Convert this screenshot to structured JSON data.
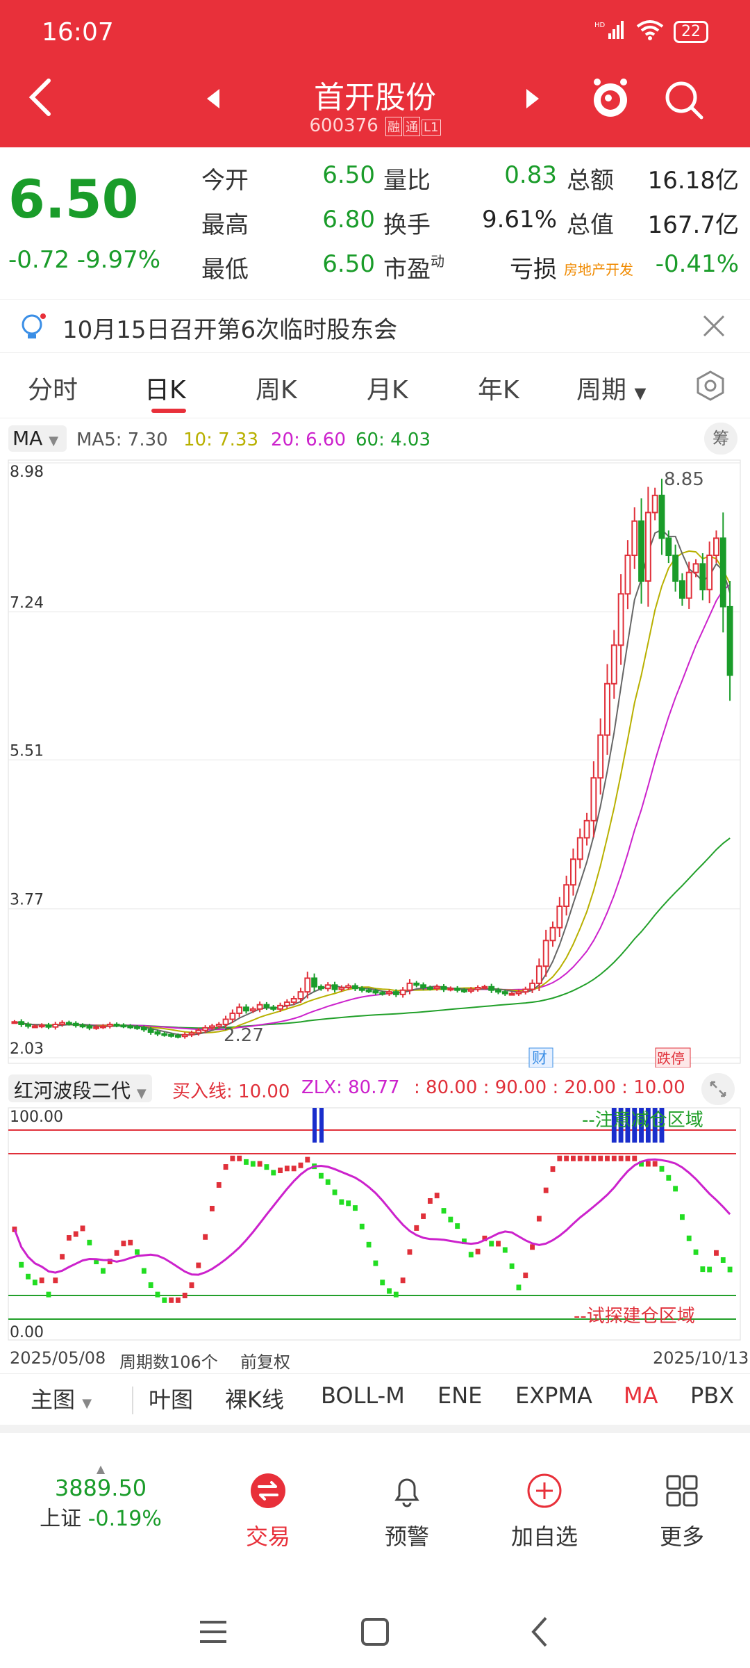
{
  "status": {
    "time": "16:07",
    "signal": "HD",
    "battery": "22"
  },
  "header": {
    "stock_name": "首开股份",
    "stock_code": "600376",
    "tags": [
      "融",
      "通",
      "L1"
    ]
  },
  "quote": {
    "price": "6.50",
    "change": "-0.72  -9.97%",
    "fields": {
      "open_label": "今开",
      "open": "6.50",
      "high_label": "最高",
      "high": "6.80",
      "low_label": "最低",
      "low": "6.50",
      "volratio_label": "量比",
      "volratio": "0.83",
      "turnover_label": "换手",
      "turnover": "9.61%",
      "pe_label": "市盈",
      "pe_sup": "动",
      "pe": "亏损",
      "amount_label": "总额",
      "amount": "16.18亿",
      "mktcap_label": "总值",
      "mktcap": "167.7亿",
      "sector": "房地产开发",
      "sector_change": "-0.41%"
    }
  },
  "notice": {
    "text": "10月15日召开第6次临时股东会"
  },
  "tabs": [
    "分时",
    "日K",
    "周K",
    "月K",
    "年K",
    "周期"
  ],
  "ma_bar": {
    "select": "MA",
    "ma5": "MA5: 7.30",
    "ma10": "10: 7.33",
    "ma20": "20: 6.60",
    "ma60": "60: 4.03",
    "calc": "筹",
    "colors": {
      "ma5": "#666666",
      "ma10": "#b8b000",
      "ma20": "#cc22cc",
      "ma60": "#22a02a"
    }
  },
  "main_chart": {
    "y_labels": [
      "8.98",
      "7.24",
      "5.51",
      "3.77",
      "2.03"
    ],
    "high_mark": "8.85",
    "low_mark": "2.27",
    "tag_cai": "财",
    "tag_wu": "跌停",
    "colors": {
      "up": "#e0303a",
      "down": "#1a9c2a"
    }
  },
  "indicator": {
    "name": "红河波段二代",
    "buy_line": "买入线: 10.00",
    "zlx": "ZLX: 80.77",
    "levels": ": 80.00  : 90.00  : 20.00  : 10.00",
    "top_label": "100.00",
    "bottom_label": "0.00",
    "zone_top": "--注意减仓区域",
    "zone_bottom": "--试探建仓区域"
  },
  "dates": {
    "start": "2025/05/08",
    "period": "周期数106个",
    "adjust": "前复权",
    "end": "2025/10/13"
  },
  "ind_tabs": [
    "主图",
    "叶图",
    "裸K线",
    "BOLL-M",
    "ENE",
    "EXPMA",
    "MA",
    "PBX"
  ],
  "bottom_bar": {
    "index_value": "3889.50",
    "index_name": "上证",
    "index_pct": "-0.19%",
    "items": [
      "交易",
      "预警",
      "加自选",
      "更多"
    ]
  },
  "chart_data": {
    "type": "candlestick",
    "ylim": [
      2.03,
      8.98
    ],
    "y_ticks": [
      8.98,
      7.24,
      5.51,
      3.77,
      2.03
    ],
    "x_range": [
      "2025/05/08",
      "2025/10/13"
    ],
    "periods": 106,
    "close": [
      2.45,
      2.42,
      2.4,
      2.4,
      2.41,
      2.39,
      2.42,
      2.44,
      2.43,
      2.41,
      2.4,
      2.38,
      2.39,
      2.4,
      2.42,
      2.41,
      2.4,
      2.39,
      2.38,
      2.36,
      2.33,
      2.31,
      2.3,
      2.29,
      2.28,
      2.3,
      2.32,
      2.35,
      2.38,
      2.4,
      2.42,
      2.48,
      2.55,
      2.62,
      2.58,
      2.6,
      2.65,
      2.62,
      2.6,
      2.64,
      2.68,
      2.72,
      2.8,
      2.96,
      2.86,
      2.84,
      2.88,
      2.83,
      2.85,
      2.87,
      2.84,
      2.82,
      2.81,
      2.79,
      2.78,
      2.8,
      2.77,
      2.82,
      2.9,
      2.88,
      2.85,
      2.84,
      2.86,
      2.83,
      2.84,
      2.82,
      2.81,
      2.83,
      2.85,
      2.86,
      2.82,
      2.8,
      2.78,
      2.78,
      2.8,
      2.83,
      2.9,
      3.1,
      3.4,
      3.55,
      3.8,
      4.05,
      4.35,
      4.6,
      4.8,
      5.3,
      5.8,
      6.4,
      6.85,
      7.45,
      7.9,
      8.3,
      7.6,
      8.4,
      8.6,
      8.1,
      7.9,
      7.6,
      7.4,
      7.7,
      7.8,
      7.5,
      7.9,
      8.1,
      7.3,
      6.5
    ]
  }
}
